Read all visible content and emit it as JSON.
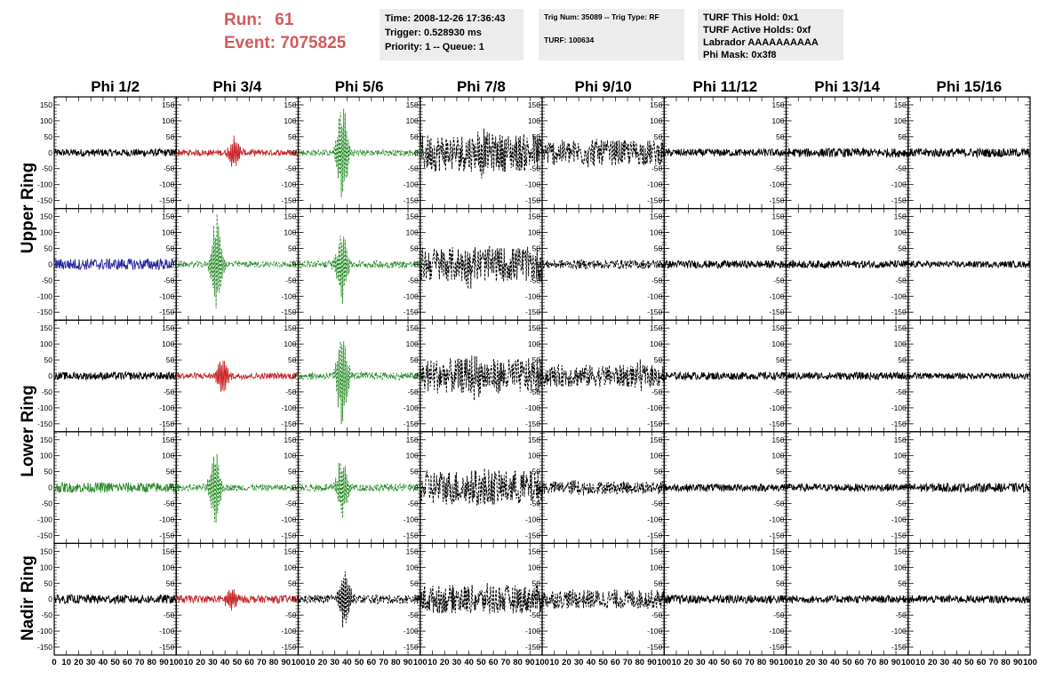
{
  "header": {
    "run_label": "Run:",
    "run_value": "61",
    "event_label": "Event:",
    "event_value": "7075825",
    "time_line": "Time: 2008-12-26 17:36:43",
    "trigger_line": "Trigger: 0.528930 ms",
    "priority_line": "Priority: 1 -- Queue: 1",
    "trig_num_line": "Trig Num: 35089 -- Trig Type: RF",
    "turf_line": "TURF: 100634",
    "turf_hold_line": "TURF This Hold: 0x1",
    "turf_active_line": "TURF Active Holds: 0xf",
    "labrador_line": "Labrador AAAAAAAAAA",
    "phi_mask_line": "Phi Mask: 0x3f8"
  },
  "chart_data": {
    "type": "line",
    "columns": [
      "Phi 1/2",
      "Phi 3/4",
      "Phi 5/6",
      "Phi 7/8",
      "Phi 9/10",
      "Phi 11/12",
      "Phi 13/14",
      "Phi 15/16"
    ],
    "row_groups": [
      {
        "label": "Upper Ring",
        "rows": 2
      },
      {
        "label": "Lower Ring",
        "rows": 2
      },
      {
        "label": "Nadir Ring",
        "rows": 1
      }
    ],
    "ylim": [
      -175,
      175
    ],
    "yticks": [
      -150,
      -100,
      -50,
      0,
      50,
      100,
      150
    ],
    "ytick_labels": [
      "-150",
      "-100",
      "-50",
      "0",
      "50",
      "100",
      "150"
    ],
    "xlim": [
      0,
      100
    ],
    "xticks": [
      0,
      10,
      20,
      30,
      40,
      50,
      60,
      70,
      80,
      90,
      100
    ],
    "xtick_labels_first": [
      "0",
      "10",
      "20",
      "30",
      "40",
      "50",
      "60",
      "70",
      "80",
      "90",
      "100"
    ],
    "xtick_labels_other": [
      "10",
      "20",
      "30",
      "40",
      "50",
      "60",
      "70",
      "80",
      "90",
      "100"
    ],
    "colors": {
      "black": "#000000",
      "red": "#c8282a",
      "green": "#2a8c2a",
      "blue": "#2a2aa0"
    },
    "traces": [
      [
        {
          "color": "black",
          "dashed": false,
          "noise": 12,
          "peak": 0,
          "center": 0
        },
        {
          "color": "red",
          "dashed": false,
          "noise": 10,
          "peak": 55,
          "center": 48
        },
        {
          "color": "green",
          "dashed": true,
          "noise": 10,
          "peak": 175,
          "center": 36
        },
        {
          "color": "black",
          "dashed": true,
          "noise": 60,
          "peak": 40,
          "center": 50
        },
        {
          "color": "black",
          "dashed": true,
          "noise": 40,
          "peak": 20,
          "center": 40
        },
        {
          "color": "black",
          "dashed": false,
          "noise": 12,
          "peak": 0,
          "center": 0
        },
        {
          "color": "black",
          "dashed": false,
          "noise": 14,
          "peak": 0,
          "center": 0
        },
        {
          "color": "black",
          "dashed": false,
          "noise": 14,
          "peak": 0,
          "center": 0
        }
      ],
      [
        {
          "color": "blue",
          "dashed": false,
          "noise": 18,
          "peak": 0,
          "center": 0
        },
        {
          "color": "green",
          "dashed": true,
          "noise": 10,
          "peak": 170,
          "center": 33
        },
        {
          "color": "green",
          "dashed": true,
          "noise": 12,
          "peak": 130,
          "center": 36
        },
        {
          "color": "black",
          "dashed": true,
          "noise": 55,
          "peak": 30,
          "center": 40
        },
        {
          "color": "black",
          "dashed": true,
          "noise": 14,
          "peak": 0,
          "center": 0
        },
        {
          "color": "black",
          "dashed": false,
          "noise": 12,
          "peak": 0,
          "center": 0
        },
        {
          "color": "black",
          "dashed": false,
          "noise": 12,
          "peak": 0,
          "center": 0
        },
        {
          "color": "black",
          "dashed": false,
          "noise": 10,
          "peak": 0,
          "center": 0
        }
      ],
      [
        {
          "color": "black",
          "dashed": false,
          "noise": 12,
          "peak": 0,
          "center": 0
        },
        {
          "color": "red",
          "dashed": false,
          "noise": 10,
          "peak": 70,
          "center": 38
        },
        {
          "color": "green",
          "dashed": true,
          "noise": 12,
          "peak": 165,
          "center": 36
        },
        {
          "color": "black",
          "dashed": true,
          "noise": 55,
          "peak": 30,
          "center": 45
        },
        {
          "color": "black",
          "dashed": true,
          "noise": 35,
          "peak": 20,
          "center": 80
        },
        {
          "color": "black",
          "dashed": false,
          "noise": 12,
          "peak": 0,
          "center": 0
        },
        {
          "color": "black",
          "dashed": false,
          "noise": 12,
          "peak": 0,
          "center": 0
        },
        {
          "color": "black",
          "dashed": false,
          "noise": 10,
          "peak": 0,
          "center": 0
        }
      ],
      [
        {
          "color": "green",
          "dashed": false,
          "noise": 16,
          "peak": 0,
          "center": 0
        },
        {
          "color": "green",
          "dashed": true,
          "noise": 10,
          "peak": 140,
          "center": 32
        },
        {
          "color": "green",
          "dashed": true,
          "noise": 12,
          "peak": 110,
          "center": 36
        },
        {
          "color": "black",
          "dashed": true,
          "noise": 55,
          "peak": 40,
          "center": 50
        },
        {
          "color": "black",
          "dashed": true,
          "noise": 20,
          "peak": 20,
          "center": 30
        },
        {
          "color": "black",
          "dashed": false,
          "noise": 12,
          "peak": 0,
          "center": 0
        },
        {
          "color": "black",
          "dashed": false,
          "noise": 12,
          "peak": 0,
          "center": 0
        },
        {
          "color": "black",
          "dashed": false,
          "noise": 14,
          "peak": 0,
          "center": 0
        }
      ],
      [
        {
          "color": "black",
          "dashed": false,
          "noise": 14,
          "peak": 0,
          "center": 0
        },
        {
          "color": "red",
          "dashed": false,
          "noise": 12,
          "peak": 40,
          "center": 45
        },
        {
          "color": "black",
          "dashed": true,
          "noise": 14,
          "peak": 110,
          "center": 38
        },
        {
          "color": "black",
          "dashed": true,
          "noise": 45,
          "peak": 25,
          "center": 55
        },
        {
          "color": "black",
          "dashed": true,
          "noise": 30,
          "peak": 0,
          "center": 0
        },
        {
          "color": "black",
          "dashed": false,
          "noise": 14,
          "peak": 0,
          "center": 0
        },
        {
          "color": "black",
          "dashed": false,
          "noise": 12,
          "peak": 0,
          "center": 0
        },
        {
          "color": "black",
          "dashed": false,
          "noise": 12,
          "peak": 0,
          "center": 0
        }
      ]
    ]
  }
}
